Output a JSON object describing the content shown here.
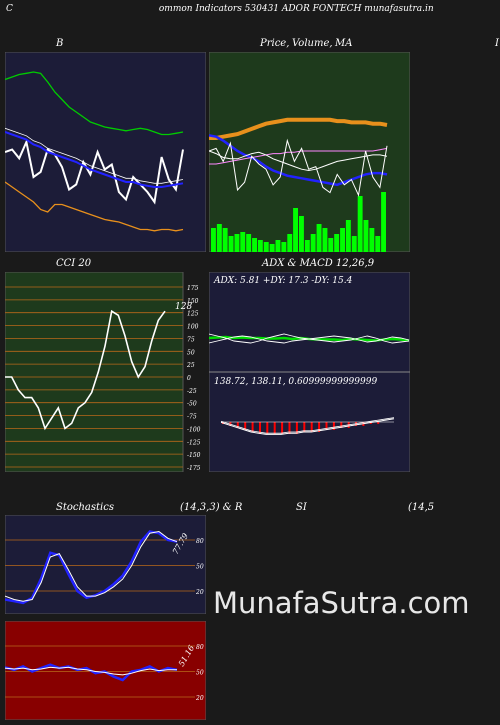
{
  "header": {
    "left_glyph": "C",
    "title": "ommon  Indicators 530431 ADOR FONTECH munafasutra.in"
  },
  "watermark": "MunafaSutra.com",
  "panels": {
    "bb": {
      "title": "B"
    },
    "price": {
      "title_a": "Price,",
      "title_b": "Volume,",
      "title_c": "MA",
      "right_glyph": "I"
    },
    "cci": {
      "title": "CCI 20",
      "last_label": "128"
    },
    "adx": {
      "title": "ADX  & MACD 12,26,9",
      "adx_text": "ADX: 5.81 +DY: 17.3 -DY: 15.4",
      "macd_text": "138.72,  138.11,  0.60999999999999"
    },
    "stoch": {
      "title_a": "Stochastics",
      "title_b": "(14,3,3) & R",
      "last_label": "77.79"
    },
    "rsi": {
      "title_a": "SI",
      "title_b": "(14,5",
      "last_label": "51.16"
    }
  },
  "colors": {
    "dark_panel": "#1c1c38",
    "green_panel": "#1e3a1c",
    "red_panel": "#880000",
    "grid_orange": "#b8681a",
    "green": "#00cc00",
    "blue": "#2222ff",
    "orange": "#e8901c"
  },
  "chart_data": [
    {
      "type": "line",
      "name": "bollinger",
      "series": [
        {
          "role": "upper",
          "color": "#00cc00",
          "values": [
            62,
            60,
            58,
            57,
            56,
            57,
            64,
            72,
            78,
            84,
            88,
            92,
            96,
            98,
            100,
            101,
            102,
            103,
            102,
            101,
            102,
            104,
            106,
            106,
            105,
            104
          ]
        },
        {
          "role": "price",
          "color": "#ffffff",
          "values": [
            120,
            118,
            125,
            112,
            140,
            136,
            118,
            122,
            132,
            150,
            146,
            128,
            138,
            120,
            134,
            130,
            152,
            158,
            140,
            146,
            152,
            160,
            124,
            142,
            150,
            118
          ]
        },
        {
          "role": "middle",
          "color": "#2222ff",
          "values": [
            104,
            106,
            108,
            110,
            114,
            116,
            120,
            122,
            124,
            126,
            128,
            131,
            134,
            136,
            138,
            140,
            142,
            144,
            144,
            146,
            147,
            148,
            148,
            147,
            146,
            145
          ]
        },
        {
          "role": "lower",
          "color": "#e8901c",
          "values": [
            144,
            148,
            152,
            156,
            160,
            166,
            168,
            162,
            162,
            164,
            166,
            168,
            170,
            172,
            174,
            175,
            176,
            178,
            180,
            182,
            182,
            183,
            182,
            182,
            183,
            182
          ]
        }
      ],
      "ylim": [
        40,
        200
      ]
    },
    {
      "type": "line",
      "name": "price_ma",
      "series": [
        {
          "role": "ma_orange",
          "color": "#e8901c",
          "values": [
            20,
            20,
            19,
            18,
            17,
            15,
            13,
            11,
            9,
            8,
            7,
            6,
            6,
            6,
            6,
            6,
            6,
            6,
            7,
            7,
            8,
            8,
            8,
            9,
            9,
            10
          ]
        },
        {
          "role": "ma_blue",
          "color": "#2222ff",
          "values": [
            18,
            19,
            22,
            26,
            30,
            33,
            35,
            38,
            42,
            45,
            47,
            49,
            50,
            51,
            52,
            53,
            54,
            55,
            56,
            54,
            52,
            50,
            48,
            47,
            47,
            48
          ]
        },
        {
          "role": "ma_pink",
          "color": "#ff88ff",
          "values": [
            40,
            40,
            39,
            38,
            37,
            36,
            35,
            34,
            33,
            32,
            32,
            31,
            31,
            30,
            30,
            30,
            30,
            30,
            30,
            30,
            30,
            30,
            30,
            30,
            29,
            28
          ]
        },
        {
          "role": "ma_white",
          "color": "#ffffff",
          "values": [
            30,
            32,
            35,
            36,
            36,
            34,
            32,
            31,
            33,
            36,
            38,
            40,
            42,
            44,
            45,
            44,
            42,
            40,
            38,
            37,
            36,
            35,
            34,
            33,
            33,
            34
          ]
        },
        {
          "role": "price",
          "color": "#ffffff",
          "values": [
            30,
            28,
            38,
            24,
            60,
            54,
            34,
            40,
            44,
            56,
            50,
            22,
            38,
            28,
            44,
            42,
            58,
            62,
            48,
            56,
            52,
            64,
            30,
            50,
            58,
            26
          ]
        }
      ],
      "volume": [
        12,
        14,
        12,
        8,
        9,
        10,
        9,
        7,
        6,
        5,
        4,
        6,
        5,
        9,
        22,
        18,
        6,
        9,
        14,
        12,
        7,
        9,
        12,
        16,
        8,
        28,
        16,
        12,
        8,
        30
      ],
      "ylim": [
        0,
        100
      ]
    },
    {
      "type": "line",
      "name": "cci",
      "series": [
        {
          "name": "CCI 20",
          "color": "#ffffff",
          "values": [
            0,
            0,
            -25,
            -40,
            -40,
            -60,
            -100,
            -80,
            -60,
            -100,
            -90,
            -60,
            -50,
            -30,
            10,
            60,
            128,
            120,
            80,
            30,
            0,
            20,
            70,
            110,
            128
          ]
        }
      ],
      "ylim": [
        -175,
        175
      ],
      "ticks": [
        175,
        150,
        125,
        100,
        75,
        50,
        25,
        0,
        -25,
        -50,
        -75,
        -100,
        -125,
        -150,
        -175
      ]
    },
    {
      "type": "line",
      "name": "adx_macd",
      "series": [
        {
          "role": "adx_green",
          "color": "#00dd00",
          "values": [
            52,
            51,
            50,
            52,
            51,
            52,
            52,
            53,
            53,
            52,
            54,
            52,
            54,
            55,
            55,
            55,
            56,
            54,
            55,
            56,
            57,
            55,
            54,
            55,
            57
          ]
        },
        {
          "role": "adx_white_a",
          "color": "#ffffff",
          "values": [
            44,
            48,
            52,
            58,
            60,
            62,
            58,
            52,
            48,
            44,
            48,
            52,
            54,
            56,
            58,
            60,
            58,
            56,
            52,
            48,
            52,
            58,
            62,
            60,
            58
          ]
        },
        {
          "role": "adx_white_b",
          "color": "#ffffff",
          "values": [
            62,
            58,
            54,
            50,
            48,
            50,
            54,
            58,
            60,
            62,
            58,
            56,
            54,
            52,
            50,
            48,
            50,
            52,
            56,
            60,
            58,
            54,
            50,
            52,
            56
          ]
        },
        {
          "role": "macd_line",
          "color": "#ffffff",
          "values": [
            -2,
            -4,
            -6,
            -8,
            -10,
            -11,
            -12,
            -12,
            -12,
            -11,
            -11,
            -10,
            -10,
            -9,
            -8,
            -7,
            -6,
            -5,
            -4,
            -3,
            -2,
            -1,
            0,
            1
          ]
        },
        {
          "role": "macd_hist",
          "color": "#ff0000",
          "values": [
            -1,
            -2,
            -3,
            -4,
            -5,
            -6,
            -6,
            -6,
            -6,
            -6,
            -6,
            -5,
            -5,
            -5,
            -4,
            -4,
            -3,
            -3,
            -2,
            -2,
            -1,
            -1,
            0
          ]
        }
      ]
    },
    {
      "type": "line",
      "name": "stochastics",
      "series": [
        {
          "role": "k",
          "color": "#2222ff",
          "values": [
            10,
            8,
            6,
            12,
            35,
            65,
            62,
            40,
            20,
            12,
            15,
            20,
            28,
            38,
            55,
            78,
            90,
            88,
            80,
            78
          ]
        },
        {
          "role": "d",
          "color": "#ffffff",
          "values": [
            14,
            10,
            8,
            10,
            30,
            60,
            64,
            45,
            25,
            14,
            14,
            18,
            25,
            34,
            50,
            72,
            88,
            90,
            82,
            78
          ]
        }
      ],
      "ylim": [
        0,
        100
      ],
      "ticks": [
        80,
        50,
        20
      ]
    },
    {
      "type": "line",
      "name": "rsi",
      "series": [
        {
          "role": "rsi_blue",
          "color": "#2222ff",
          "values": [
            55,
            52,
            56,
            50,
            54,
            58,
            54,
            56,
            52,
            54,
            48,
            50,
            44,
            40,
            50,
            52,
            56,
            50,
            54,
            52
          ]
        },
        {
          "role": "rsi_white",
          "color": "#ffffff",
          "values": [
            54,
            53,
            54,
            52,
            53,
            55,
            54,
            55,
            53,
            52,
            50,
            49,
            47,
            46,
            48,
            51,
            53,
            51,
            52,
            52
          ]
        }
      ],
      "ylim": [
        0,
        100
      ],
      "ticks": [
        80,
        50,
        20
      ]
    }
  ]
}
